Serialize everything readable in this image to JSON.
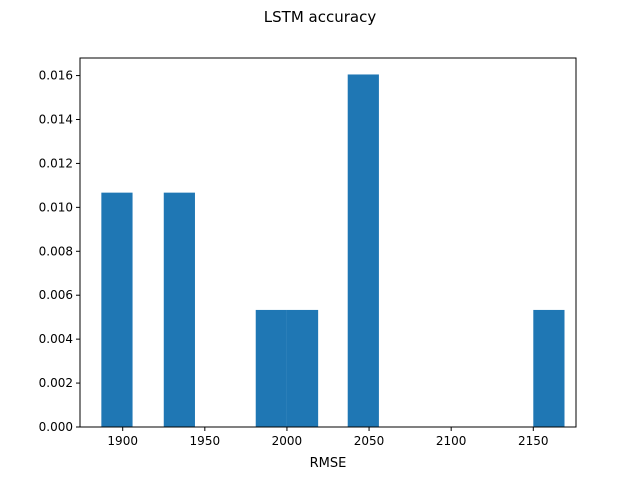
{
  "chart_data": {
    "type": "bar",
    "title": "LSTM accuracy",
    "xlabel": "RMSE",
    "ylabel": "",
    "bar_color": "#1f77b4",
    "xlim": [
      1874,
      2176
    ],
    "ylim": [
      0,
      0.0168
    ],
    "bins": [
      {
        "x0": 1887,
        "x1": 1906,
        "value": 0.01067
      },
      {
        "x0": 1925,
        "x1": 1944,
        "value": 0.01067
      },
      {
        "x0": 1981,
        "x1": 2000,
        "value": 0.00533
      },
      {
        "x0": 2000,
        "x1": 2019,
        "value": 0.00533
      },
      {
        "x0": 2037,
        "x1": 2056,
        "value": 0.01605
      },
      {
        "x0": 2150,
        "x1": 2169,
        "value": 0.00533
      }
    ],
    "x_ticks": [
      {
        "value": 1900,
        "label": "1900"
      },
      {
        "value": 1950,
        "label": "1950"
      },
      {
        "value": 2000,
        "label": "2000"
      },
      {
        "value": 2050,
        "label": "2050"
      },
      {
        "value": 2100,
        "label": "2100"
      },
      {
        "value": 2150,
        "label": "2150"
      }
    ],
    "y_ticks": [
      {
        "value": 0.0,
        "label": "0.000"
      },
      {
        "value": 0.002,
        "label": "0.002"
      },
      {
        "value": 0.004,
        "label": "0.004"
      },
      {
        "value": 0.006,
        "label": "0.006"
      },
      {
        "value": 0.008,
        "label": "0.008"
      },
      {
        "value": 0.01,
        "label": "0.010"
      },
      {
        "value": 0.012,
        "label": "0.012"
      },
      {
        "value": 0.014,
        "label": "0.014"
      },
      {
        "value": 0.016,
        "label": "0.016"
      }
    ]
  }
}
